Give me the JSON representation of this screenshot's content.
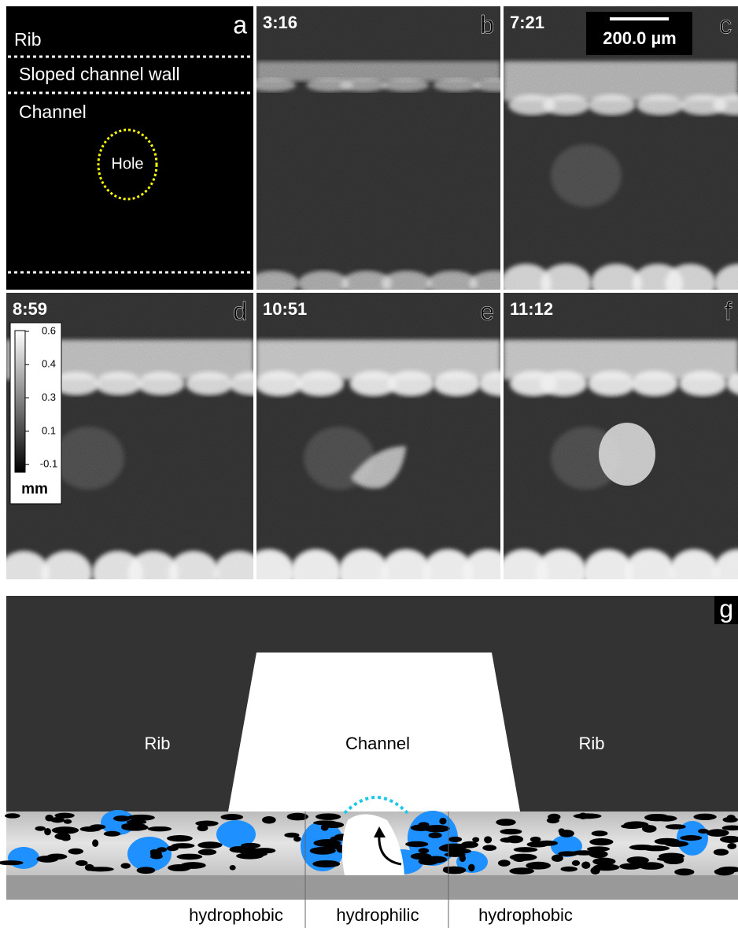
{
  "panels": [
    {
      "label": "a",
      "annotations": [
        "Rib",
        "Sloped channel wall",
        "Channel",
        "Hole"
      ]
    },
    {
      "label": "b",
      "time": "3:16"
    },
    {
      "label": "c",
      "time": "7:21",
      "scale_bar": "200.0 µm"
    },
    {
      "label": "d",
      "time": "8:59",
      "colorbar": {
        "ticks": [
          0.6,
          0.4,
          0.3,
          0.1,
          -0.1
        ],
        "unit": "mm"
      }
    },
    {
      "label": "e",
      "time": "10:51"
    },
    {
      "label": "f",
      "time": "11:12"
    }
  ],
  "schematic": {
    "label": "g",
    "regions": [
      "Rib",
      "Channel",
      "Rib"
    ],
    "zones": [
      "hydrophobic",
      "hydrophilic",
      "hydrophobic"
    ]
  }
}
